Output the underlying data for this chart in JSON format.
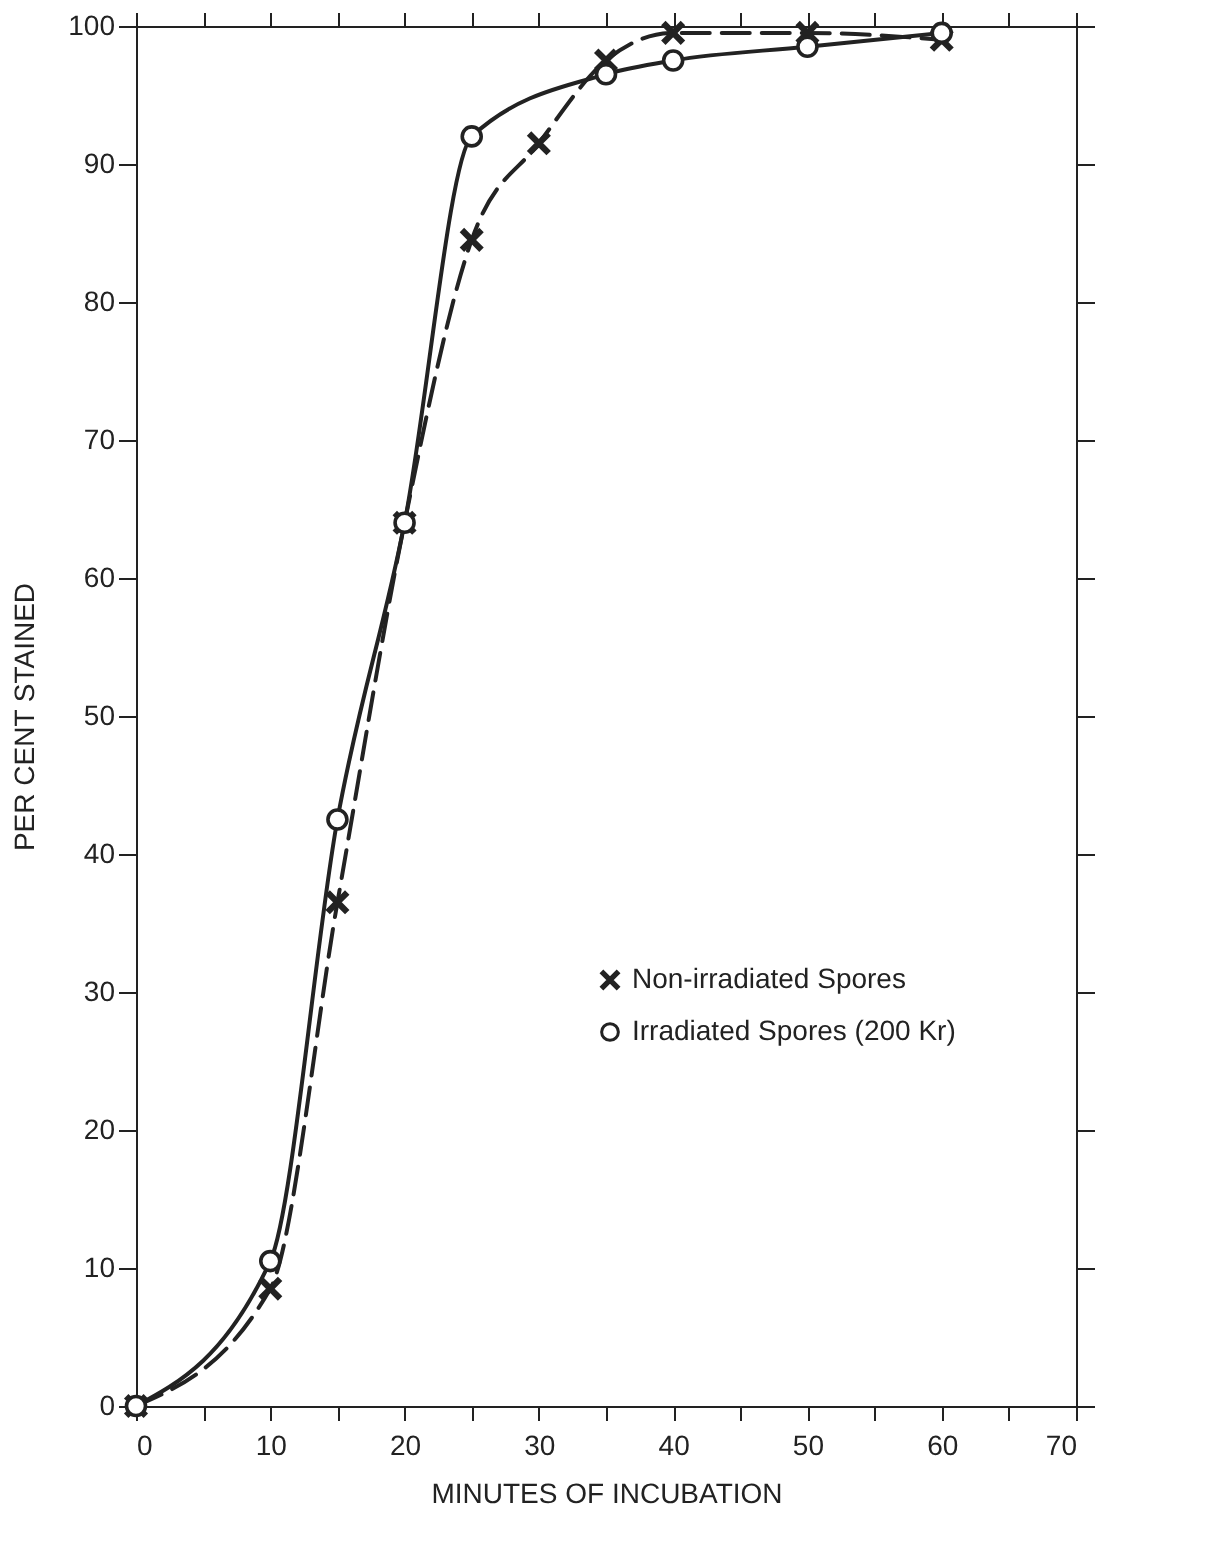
{
  "chart_data": {
    "type": "line",
    "xlabel": "MINUTES OF INCUBATION",
    "ylabel": "PER CENT STAINED",
    "xlim": [
      0,
      70
    ],
    "ylim": [
      0,
      100
    ],
    "xticks": [
      0,
      {
        "value": 5,
        "label": null
      },
      10,
      {
        "value": 15,
        "label": null
      },
      20,
      {
        "value": 25,
        "label": null
      },
      30,
      {
        "value": 35,
        "label": null
      },
      40,
      {
        "value": 45,
        "label": null
      },
      50,
      {
        "value": 55,
        "label": null
      },
      60,
      {
        "value": 65,
        "label": null
      },
      70
    ],
    "yticks": [
      0,
      10,
      20,
      30,
      40,
      50,
      60,
      70,
      80,
      90,
      100
    ],
    "grid": false,
    "legend": "bottom right",
    "series": [
      {
        "name": "Non-irradiated Spores",
        "color": "#222222",
        "marker": "cross",
        "line_style": "dashed",
        "x": [
          0,
          10,
          15,
          20,
          25,
          30,
          35,
          40,
          50,
          60
        ],
        "values": [
          0,
          8.5,
          36.5,
          64,
          84.5,
          91.5,
          97.5,
          99.5,
          99.5,
          99
        ]
      },
      {
        "name": "Irradiated Spores (200 Kr)",
        "color": "#222222",
        "marker": "circle",
        "line_style": "solid",
        "x": [
          0,
          10,
          15,
          20,
          25,
          35,
          40,
          50,
          60
        ],
        "values": [
          0,
          10.5,
          42.5,
          64,
          92,
          96.5,
          97.5,
          98.5,
          99.5
        ]
      }
    ]
  }
}
